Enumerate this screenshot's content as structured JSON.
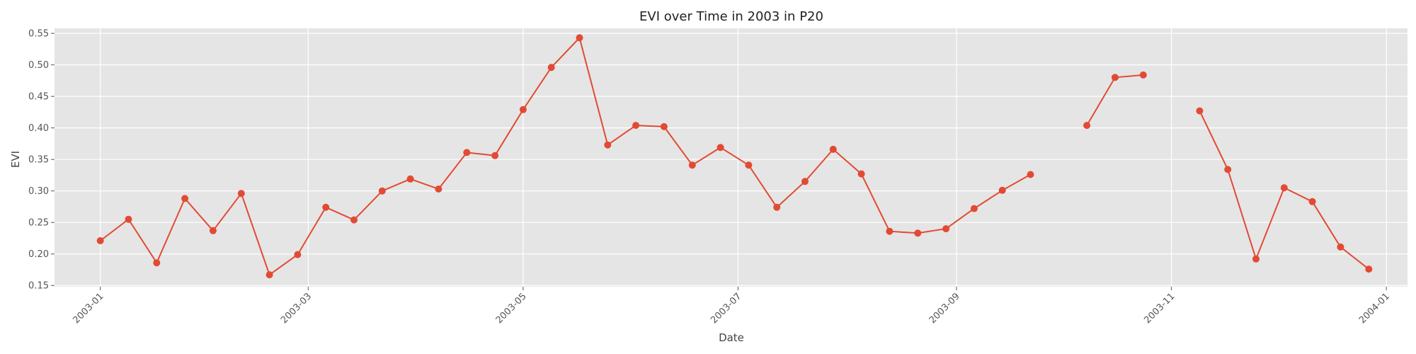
{
  "chart_data": {
    "type": "line",
    "title": "EVI over Time in 2003 in P20",
    "xlabel": "Date",
    "ylabel": "EVI",
    "x_ticks": [
      "2003-01",
      "2003-03",
      "2003-05",
      "2003-07",
      "2003-09",
      "2003-11",
      "2004-01"
    ],
    "x_tick_dates": [
      "2003-01-01",
      "2003-03-01",
      "2003-05-01",
      "2003-07-01",
      "2003-09-01",
      "2003-11-01",
      "2004-01-01"
    ],
    "y_ticks": [
      0.15,
      0.2,
      0.25,
      0.3,
      0.35,
      0.4,
      0.45,
      0.5,
      0.55
    ],
    "xlim": [
      "2002-12-19",
      "2004-01-07"
    ],
    "ylim": [
      0.148,
      0.558
    ],
    "grid": true,
    "series_color": "#E24A33",
    "background_color": "#E5E5E5",
    "series": [
      {
        "points": [
          {
            "date": "2003-01-01",
            "value": 0.221
          },
          {
            "date": "2003-01-09",
            "value": 0.255
          },
          {
            "date": "2003-01-17",
            "value": 0.186
          },
          {
            "date": "2003-01-25",
            "value": 0.288
          },
          {
            "date": "2003-02-02",
            "value": 0.237
          },
          {
            "date": "2003-02-10",
            "value": 0.296
          },
          {
            "date": "2003-02-18",
            "value": 0.167
          },
          {
            "date": "2003-02-26",
            "value": 0.199
          },
          {
            "date": "2003-03-06",
            "value": 0.274
          },
          {
            "date": "2003-03-14",
            "value": 0.254
          },
          {
            "date": "2003-03-22",
            "value": 0.3
          },
          {
            "date": "2003-03-30",
            "value": 0.319
          },
          {
            "date": "2003-04-07",
            "value": 0.303
          },
          {
            "date": "2003-04-15",
            "value": 0.361
          },
          {
            "date": "2003-04-23",
            "value": 0.356
          },
          {
            "date": "2003-05-01",
            "value": 0.429
          },
          {
            "date": "2003-05-09",
            "value": 0.496
          },
          {
            "date": "2003-05-17",
            "value": 0.543
          },
          {
            "date": "2003-05-25",
            "value": 0.373
          },
          {
            "date": "2003-06-02",
            "value": 0.404
          },
          {
            "date": "2003-06-10",
            "value": 0.402
          },
          {
            "date": "2003-06-18",
            "value": 0.341
          },
          {
            "date": "2003-06-26",
            "value": 0.369
          },
          {
            "date": "2003-07-04",
            "value": 0.341
          },
          {
            "date": "2003-07-12",
            "value": 0.274
          },
          {
            "date": "2003-07-20",
            "value": 0.315
          },
          {
            "date": "2003-07-28",
            "value": 0.366
          },
          {
            "date": "2003-08-05",
            "value": 0.327
          },
          {
            "date": "2003-08-13",
            "value": 0.236
          },
          {
            "date": "2003-08-21",
            "value": 0.233
          },
          {
            "date": "2003-08-29",
            "value": 0.24
          },
          {
            "date": "2003-09-06",
            "value": 0.272
          },
          {
            "date": "2003-09-14",
            "value": 0.301
          },
          {
            "date": "2003-09-22",
            "value": 0.326
          },
          {
            "date": "2003-09-30",
            "value": null
          },
          {
            "date": "2003-10-08",
            "value": 0.404
          },
          {
            "date": "2003-10-16",
            "value": 0.48
          },
          {
            "date": "2003-10-24",
            "value": 0.484
          },
          {
            "date": "2003-11-01",
            "value": null
          },
          {
            "date": "2003-11-09",
            "value": 0.427
          },
          {
            "date": "2003-11-17",
            "value": 0.334
          },
          {
            "date": "2003-11-25",
            "value": 0.192
          },
          {
            "date": "2003-12-03",
            "value": 0.305
          },
          {
            "date": "2003-12-11",
            "value": 0.283
          },
          {
            "date": "2003-12-19",
            "value": 0.211
          },
          {
            "date": "2003-12-27",
            "value": 0.176
          }
        ]
      }
    ]
  }
}
